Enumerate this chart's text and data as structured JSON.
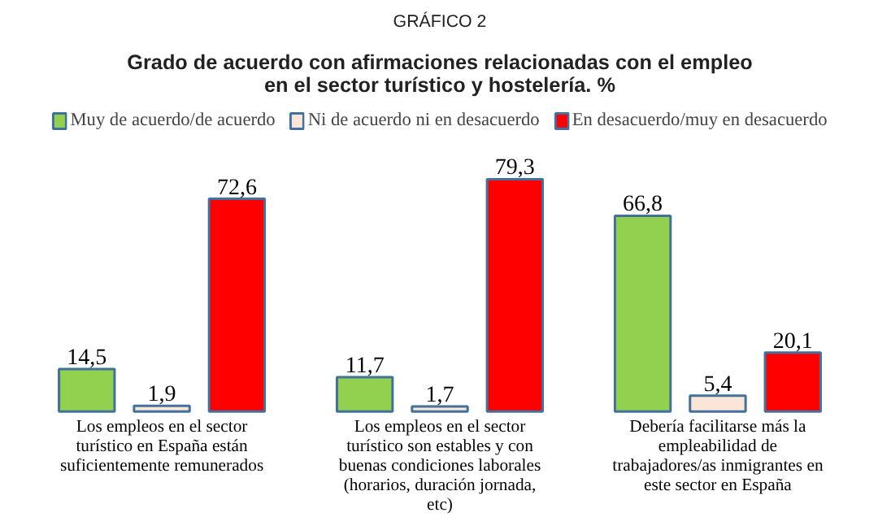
{
  "chart_data": {
    "type": "bar",
    "subtitle": "GRÁFICO 2",
    "title": "Grado de acuerdo con afirmaciones relacionadas con el empleo en el sector turístico y hostelería. %",
    "categories": [
      "Los empleos en el sector turístico en España están suficientemente remunerados",
      "Los empleos en el sector turístico son estables y con buenas condiciones laborales (horarios, duración jornada, etc)",
      "Debería facilitarse más la empleabilidad de trabajadores/as inmigrantes en este sector en España"
    ],
    "series": [
      {
        "name": "Muy de acuerdo/de acuerdo",
        "color": "#92d050",
        "values": [
          14.5,
          11.7,
          66.8
        ],
        "value_labels": [
          "14,5",
          "11,7",
          "66,8"
        ]
      },
      {
        "name": "Ni de acuerdo ni en desacuerdo",
        "color": "#fbe5d6",
        "values": [
          1.9,
          1.7,
          5.4
        ],
        "value_labels": [
          "1,9",
          "1,7",
          "5,4"
        ]
      },
      {
        "name": "En desacuerdo/muy en desacuerdo",
        "color": "#ff0000",
        "values": [
          72.6,
          79.3,
          20.1
        ],
        "value_labels": [
          "72,6",
          "79,3",
          "20,1"
        ]
      }
    ],
    "legend": "top"
  }
}
